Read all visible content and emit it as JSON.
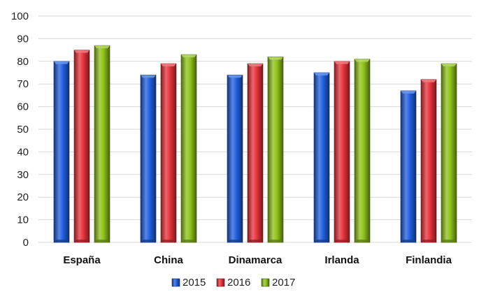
{
  "chart_data": {
    "type": "bar",
    "title": "",
    "xlabel": "",
    "ylabel": "",
    "categories": [
      "España",
      "China",
      "Dinamarca",
      "Irlanda",
      "Finlandia"
    ],
    "series": [
      {
        "name": "2015",
        "color": "#1f5fe0",
        "values": [
          80,
          74,
          74,
          75,
          67
        ]
      },
      {
        "name": "2016",
        "color": "#e8323a",
        "values": [
          85,
          79,
          79,
          80,
          72
        ]
      },
      {
        "name": "2017",
        "color": "#8fc21a",
        "values": [
          87,
          83,
          82,
          81,
          79
        ]
      }
    ],
    "ylim": [
      0,
      100
    ],
    "yticks": [
      0,
      10,
      20,
      30,
      40,
      50,
      60,
      70,
      80,
      90,
      100
    ],
    "grid": true,
    "legend_position": "bottom-center"
  }
}
